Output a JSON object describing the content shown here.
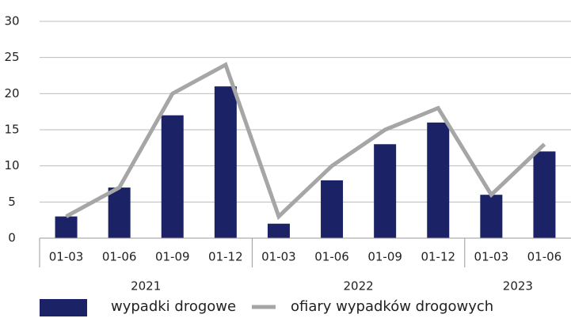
{
  "chart_data": {
    "type": "bar",
    "categories": [
      "01-03",
      "01-06",
      "01-09",
      "01-12",
      "01-03",
      "01-06",
      "01-09",
      "01-12",
      "01-03",
      "01-06"
    ],
    "groups": [
      {
        "label": "2021",
        "count": 4
      },
      {
        "label": "2022",
        "count": 4
      },
      {
        "label": "2023",
        "count": 2
      }
    ],
    "series": [
      {
        "name": "wypadki drogowe",
        "type": "bar",
        "color": "#1b2366",
        "values": [
          3,
          7,
          17,
          21,
          2,
          8,
          13,
          16,
          6,
          12
        ]
      },
      {
        "name": "ofiary wypadków drogowych",
        "type": "line",
        "color": "#a6a6a6",
        "values": [
          3,
          7,
          20,
          24,
          3,
          10,
          15,
          18,
          6,
          13
        ]
      }
    ],
    "ylim": [
      0,
      30
    ],
    "yticks": [
      0,
      5,
      10,
      15,
      20,
      25,
      30
    ],
    "grid": true,
    "legend": "bottom"
  }
}
